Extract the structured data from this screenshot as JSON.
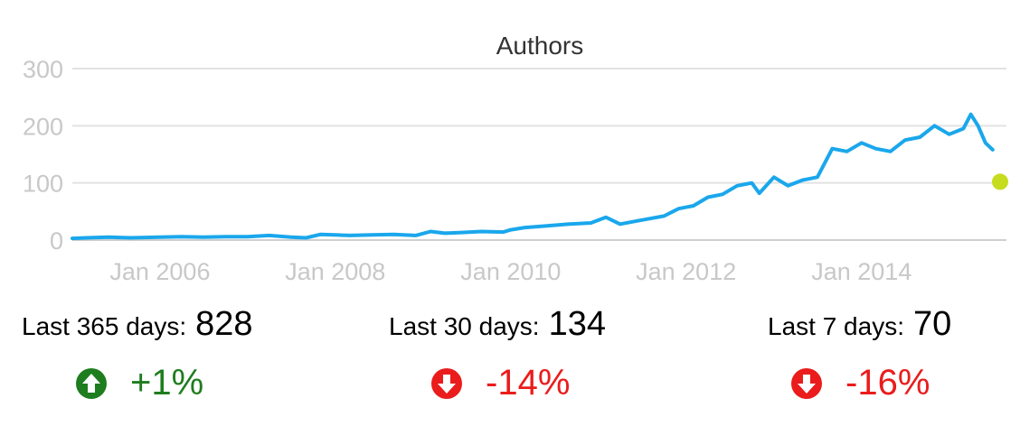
{
  "chart_data": {
    "type": "line",
    "title": "Authors",
    "xlabel": "",
    "ylabel": "",
    "ylim": [
      0,
      300
    ],
    "xlim": [
      "2005-01-01",
      "2015-08-01"
    ],
    "y_ticks": [
      "0",
      "100",
      "200",
      "300"
    ],
    "x_ticks": [
      {
        "date": "2006-01-01",
        "label": "Jan 2006"
      },
      {
        "date": "2008-01-01",
        "label": "Jan 2008"
      },
      {
        "date": "2010-01-01",
        "label": "Jan 2010"
      },
      {
        "date": "2012-01-01",
        "label": "Jan 2012"
      },
      {
        "date": "2014-01-01",
        "label": "Jan 2014"
      }
    ],
    "grid": true,
    "series": [
      {
        "color": "#1aa7ec",
        "points": [
          [
            "2005-01-01",
            3
          ],
          [
            "2005-03-01",
            4
          ],
          [
            "2005-06-01",
            5
          ],
          [
            "2005-09-01",
            4
          ],
          [
            "2006-01-01",
            5
          ],
          [
            "2006-04-01",
            6
          ],
          [
            "2006-07-01",
            5
          ],
          [
            "2006-10-01",
            6
          ],
          [
            "2007-01-01",
            6
          ],
          [
            "2007-04-01",
            8
          ],
          [
            "2007-07-01",
            5
          ],
          [
            "2007-09-01",
            4
          ],
          [
            "2007-11-01",
            10
          ],
          [
            "2008-01-01",
            9
          ],
          [
            "2008-03-01",
            8
          ],
          [
            "2008-06-01",
            9
          ],
          [
            "2008-09-01",
            10
          ],
          [
            "2008-12-01",
            8
          ],
          [
            "2009-02-01",
            15
          ],
          [
            "2009-04-01",
            12
          ],
          [
            "2009-06-01",
            13
          ],
          [
            "2009-09-01",
            15
          ],
          [
            "2009-12-01",
            14
          ],
          [
            "2010-01-01",
            18
          ],
          [
            "2010-03-01",
            22
          ],
          [
            "2010-06-01",
            25
          ],
          [
            "2010-09-01",
            28
          ],
          [
            "2010-12-01",
            30
          ],
          [
            "2011-02-01",
            40
          ],
          [
            "2011-04-01",
            28
          ],
          [
            "2011-07-01",
            35
          ],
          [
            "2011-10-01",
            42
          ],
          [
            "2011-12-01",
            55
          ],
          [
            "2012-02-01",
            60
          ],
          [
            "2012-04-01",
            75
          ],
          [
            "2012-06-01",
            80
          ],
          [
            "2012-08-01",
            95
          ],
          [
            "2012-10-01",
            100
          ],
          [
            "2012-11-01",
            82
          ],
          [
            "2013-01-01",
            110
          ],
          [
            "2013-03-01",
            95
          ],
          [
            "2013-05-01",
            105
          ],
          [
            "2013-07-01",
            110
          ],
          [
            "2013-09-01",
            160
          ],
          [
            "2013-11-01",
            155
          ],
          [
            "2014-01-01",
            170
          ],
          [
            "2014-03-01",
            160
          ],
          [
            "2014-05-01",
            155
          ],
          [
            "2014-07-01",
            175
          ],
          [
            "2014-09-01",
            180
          ],
          [
            "2014-11-01",
            200
          ],
          [
            "2015-01-01",
            185
          ],
          [
            "2015-03-01",
            195
          ],
          [
            "2015-04-01",
            220
          ],
          [
            "2015-05-01",
            200
          ],
          [
            "2015-06-01",
            170
          ],
          [
            "2015-07-01",
            158
          ]
        ]
      }
    ],
    "marker": {
      "date": "2015-08-01",
      "value": 102,
      "color": "#c6dc1e"
    }
  },
  "stats": [
    {
      "label": "Last 365 days:",
      "value": "828",
      "change": "+1%",
      "direction": "up",
      "icon": "arrow-up-circle-icon",
      "color": "#1e7d1e"
    },
    {
      "label": "Last 30 days:",
      "value": "134",
      "change": "-14%",
      "direction": "down",
      "icon": "arrow-down-circle-icon",
      "color": "#ea1c1c"
    },
    {
      "label": "Last 7 days:",
      "value": "70",
      "change": "-16%",
      "direction": "down",
      "icon": "arrow-down-circle-icon",
      "color": "#ea1c1c"
    }
  ]
}
